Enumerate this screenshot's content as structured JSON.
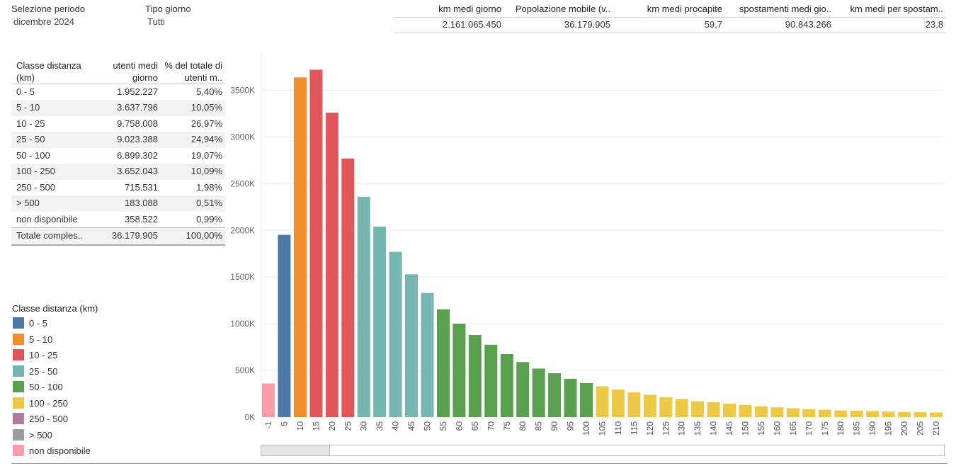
{
  "filters": {
    "periodo": {
      "label": "Selezione periodo",
      "value": "dicembre 2024"
    },
    "tipo_giorno": {
      "label": "Tipo giorno",
      "value": "Tutti"
    }
  },
  "kpis": [
    {
      "label": "km medi giorno",
      "value": "2.161.065.450"
    },
    {
      "label": "Popolazione mobile (v..",
      "value": "36.179.905"
    },
    {
      "label": "km medi procapite",
      "value": "59,7"
    },
    {
      "label": "spostamenti medi gio..",
      "value": "90.843.266"
    },
    {
      "label": "km medi per spostam..",
      "value": "23,8"
    }
  ],
  "table": {
    "headers": [
      "Classe distanza (km)",
      "utenti medi giorno",
      "% del totale di utenti m.."
    ],
    "rows": [
      {
        "classe": "0 - 5",
        "utenti": "1.952.227",
        "perc": "5,40%"
      },
      {
        "classe": "5 - 10",
        "utenti": "3.637.796",
        "perc": "10,05%"
      },
      {
        "classe": "10 - 25",
        "utenti": "9.758.008",
        "perc": "26,97%"
      },
      {
        "classe": "25 - 50",
        "utenti": "9.023.388",
        "perc": "24,94%"
      },
      {
        "classe": "50 - 100",
        "utenti": "6.899.302",
        "perc": "19,07%"
      },
      {
        "classe": "100 - 250",
        "utenti": "3.652.043",
        "perc": "10,09%"
      },
      {
        "classe": "250 - 500",
        "utenti": "715.531",
        "perc": "1,98%"
      },
      {
        "classe": "> 500",
        "utenti": "183.088",
        "perc": "0,51%"
      },
      {
        "classe": "non disponibile",
        "utenti": "358.522",
        "perc": "0,99%"
      }
    ],
    "total": {
      "classe": "Totale comples..",
      "utenti": "36.179.905",
      "perc": "100,00%"
    }
  },
  "legend": {
    "title": "Classe distanza (km)",
    "items": [
      {
        "label": "0 - 5",
        "color": "#4e79a7"
      },
      {
        "label": "5 - 10",
        "color": "#f28e2b"
      },
      {
        "label": "10 - 25",
        "color": "#e15759"
      },
      {
        "label": "25 - 50",
        "color": "#76b7b2"
      },
      {
        "label": "50 - 100",
        "color": "#59a14f"
      },
      {
        "label": "100 - 250",
        "color": "#edc948"
      },
      {
        "label": "250 - 500",
        "color": "#b07aa1"
      },
      {
        "label": "> 500",
        "color": "#9c9c9c"
      },
      {
        "label": "non disponibile",
        "color": "#ff9da7"
      }
    ]
  },
  "chart_data": {
    "type": "bar",
    "title": "",
    "xlabel": "",
    "ylabel": "",
    "ylim": [
      0,
      3800000
    ],
    "yticks": [
      0,
      500000,
      1000000,
      1500000,
      2000000,
      2500000,
      3000000,
      3500000
    ],
    "ytick_labels": [
      "0K",
      "500K",
      "1000K",
      "1500K",
      "2000K",
      "2500K",
      "3000K",
      "3500K"
    ],
    "categories": [
      "-1",
      "5",
      "10",
      "15",
      "20",
      "25",
      "30",
      "35",
      "40",
      "45",
      "50",
      "55",
      "60",
      "65",
      "70",
      "75",
      "80",
      "85",
      "90",
      "95",
      "100",
      "105",
      "110",
      "115",
      "120",
      "125",
      "130",
      "135",
      "140",
      "145",
      "150",
      "155",
      "160",
      "165",
      "170",
      "175",
      "180",
      "185",
      "190",
      "195",
      "200",
      "205",
      "210"
    ],
    "values": [
      360000,
      1952227,
      3637796,
      3720000,
      3260000,
      2770000,
      2360000,
      2040000,
      1770000,
      1530000,
      1330000,
      1155000,
      1000000,
      880000,
      775000,
      675000,
      590000,
      520000,
      470000,
      410000,
      365000,
      330000,
      295000,
      265000,
      240000,
      215000,
      195000,
      170000,
      160000,
      145000,
      130000,
      115000,
      105000,
      95000,
      85000,
      80000,
      72000,
      68000,
      65000,
      60000,
      55000,
      52000,
      50000
    ],
    "series_class": [
      "non disponibile",
      "0 - 5",
      "5 - 10",
      "10 - 25",
      "10 - 25",
      "10 - 25",
      "25 - 50",
      "25 - 50",
      "25 - 50",
      "25 - 50",
      "25 - 50",
      "50 - 100",
      "50 - 100",
      "50 - 100",
      "50 - 100",
      "50 - 100",
      "50 - 100",
      "50 - 100",
      "50 - 100",
      "50 - 100",
      "50 - 100",
      "100 - 250",
      "100 - 250",
      "100 - 250",
      "100 - 250",
      "100 - 250",
      "100 - 250",
      "100 - 250",
      "100 - 250",
      "100 - 250",
      "100 - 250",
      "100 - 250",
      "100 - 250",
      "100 - 250",
      "100 - 250",
      "100 - 250",
      "100 - 250",
      "100 - 250",
      "100 - 250",
      "100 - 250",
      "100 - 250",
      "100 - 250",
      "100 - 250"
    ],
    "colors": {
      "0 - 5": "#4e79a7",
      "5 - 10": "#f28e2b",
      "10 - 25": "#e15759",
      "25 - 50": "#76b7b2",
      "50 - 100": "#59a14f",
      "100 - 250": "#edc948",
      "non disponibile": "#ff9da7"
    }
  },
  "scrollbar": {
    "position_fraction": 0,
    "visible_fraction": 0.1
  }
}
